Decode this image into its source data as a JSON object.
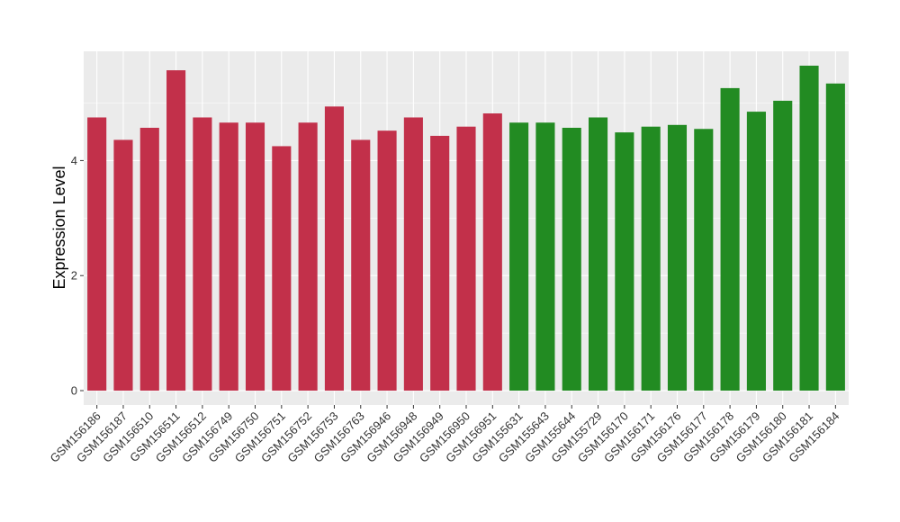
{
  "chart_data": {
    "type": "bar",
    "title": "",
    "xlabel": "",
    "ylabel": "Expression Level",
    "ylim": [
      -0.25,
      5.9
    ],
    "yticks": [
      0,
      2,
      4
    ],
    "grid": true,
    "colors": {
      "group_a": "#c2304a",
      "group_b": "#228b22",
      "panel_bg": "#ebebeb",
      "grid": "#ffffff"
    },
    "categories": [
      "GSM156186",
      "GSM156187",
      "GSM156510",
      "GSM156511",
      "GSM156512",
      "GSM156749",
      "GSM156750",
      "GSM156751",
      "GSM156752",
      "GSM156753",
      "GSM156763",
      "GSM156946",
      "GSM156948",
      "GSM156949",
      "GSM156950",
      "GSM156951",
      "GSM155631",
      "GSM155643",
      "GSM155644",
      "GSM155729",
      "GSM156170",
      "GSM156171",
      "GSM156176",
      "GSM156177",
      "GSM156178",
      "GSM156179",
      "GSM156180",
      "GSM156181",
      "GSM156184"
    ],
    "values": [
      4.75,
      4.36,
      4.57,
      5.57,
      4.75,
      4.66,
      4.66,
      4.25,
      4.66,
      4.94,
      4.36,
      4.52,
      4.75,
      4.43,
      4.59,
      4.82,
      4.66,
      4.66,
      4.57,
      4.75,
      4.49,
      4.59,
      4.62,
      4.55,
      5.26,
      4.85,
      5.04,
      5.65,
      5.34
    ],
    "groups": [
      "a",
      "a",
      "a",
      "a",
      "a",
      "a",
      "a",
      "a",
      "a",
      "a",
      "a",
      "a",
      "a",
      "a",
      "a",
      "a",
      "b",
      "b",
      "b",
      "b",
      "b",
      "b",
      "b",
      "b",
      "b",
      "b",
      "b",
      "b",
      "b"
    ]
  }
}
